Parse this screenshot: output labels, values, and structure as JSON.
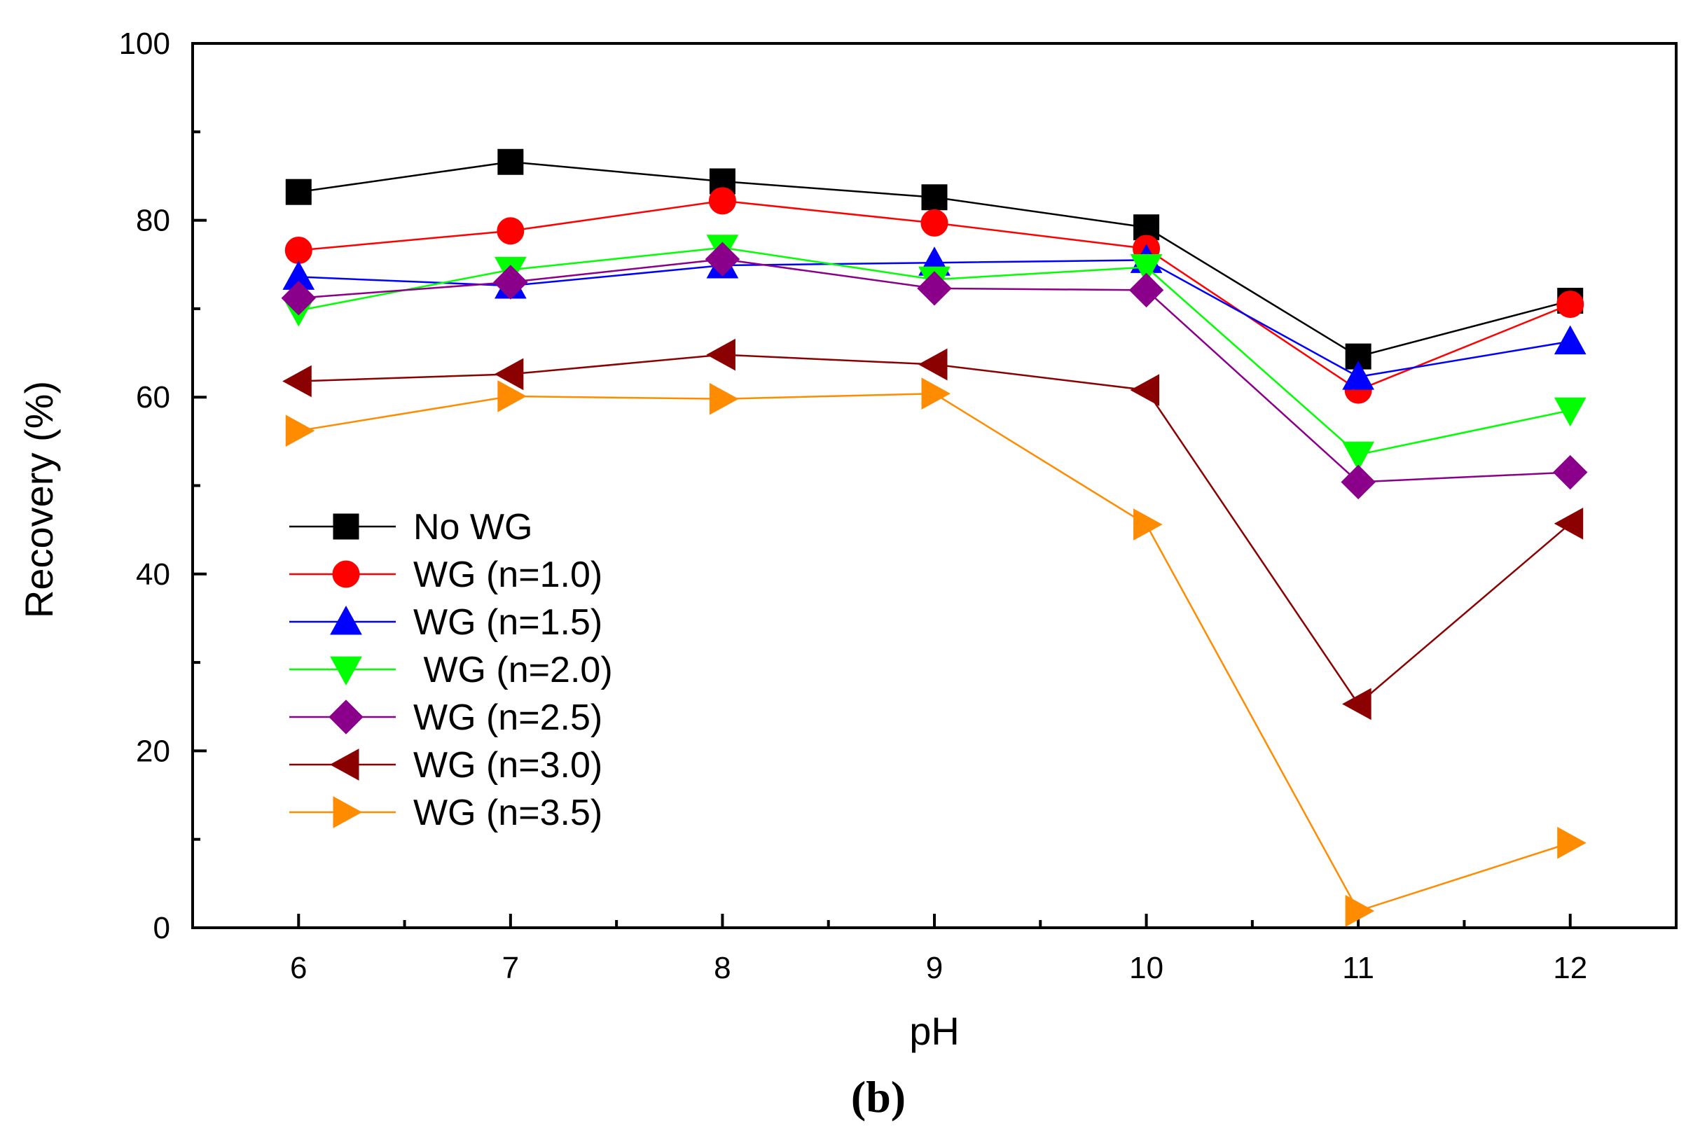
{
  "chart_data": {
    "type": "line",
    "title": "",
    "xlabel": "pH",
    "ylabel": "Recovery (%)",
    "panel_label": "(b)",
    "xlim": [
      5.5,
      12.5
    ],
    "ylim": [
      0,
      100
    ],
    "x": [
      6,
      7,
      8,
      9,
      10,
      11,
      12
    ],
    "x_ticks": [
      6,
      7,
      8,
      9,
      10,
      11,
      12
    ],
    "x_tick_labels": [
      "6",
      "7",
      "8",
      "9",
      "10",
      "11",
      "12"
    ],
    "y_ticks": [
      0,
      20,
      40,
      60,
      80,
      100
    ],
    "y_tick_labels": [
      "0",
      "20",
      "40",
      "60",
      "80",
      "100"
    ],
    "y_minor_ticks": [
      10,
      30,
      50,
      70,
      90
    ],
    "grid": false,
    "legend_position": "lower-left",
    "series": [
      {
        "name": "No WG",
        "color": "#000000",
        "marker": "square",
        "values": [
          83.2,
          86.6,
          84.4,
          82.6,
          79.2,
          64.6,
          70.9
        ]
      },
      {
        "name": "WG (n=1.0)",
        "color": "#ff0000",
        "marker": "circle",
        "values": [
          76.6,
          78.8,
          82.2,
          79.7,
          76.8,
          60.8,
          70.5
        ]
      },
      {
        "name": "WG (n=1.5)",
        "color": "#0000ff",
        "marker": "triangle-up",
        "values": [
          73.6,
          72.6,
          74.9,
          75.2,
          75.5,
          62.3,
          66.3
        ]
      },
      {
        "name": " WG (n=2.0)",
        "color": "#00ff00",
        "marker": "triangle-down",
        "values": [
          69.8,
          74.4,
          76.9,
          73.3,
          74.7,
          53.5,
          58.5
        ]
      },
      {
        "name": "WG (n=2.5)",
        "color": "#8b008b",
        "marker": "diamond",
        "values": [
          71.2,
          73.0,
          75.6,
          72.3,
          72.1,
          50.4,
          51.5
        ]
      },
      {
        "name": "WG (n=3.0)",
        "color": "#8b0000",
        "marker": "triangle-left",
        "values": [
          61.8,
          62.6,
          64.8,
          63.7,
          60.8,
          25.3,
          45.7
        ]
      },
      {
        "name": "WG (n=3.5)",
        "color": "#ff8c00",
        "marker": "triangle-right",
        "values": [
          56.2,
          60.1,
          59.8,
          60.4,
          45.6,
          1.9,
          9.6
        ]
      }
    ]
  }
}
